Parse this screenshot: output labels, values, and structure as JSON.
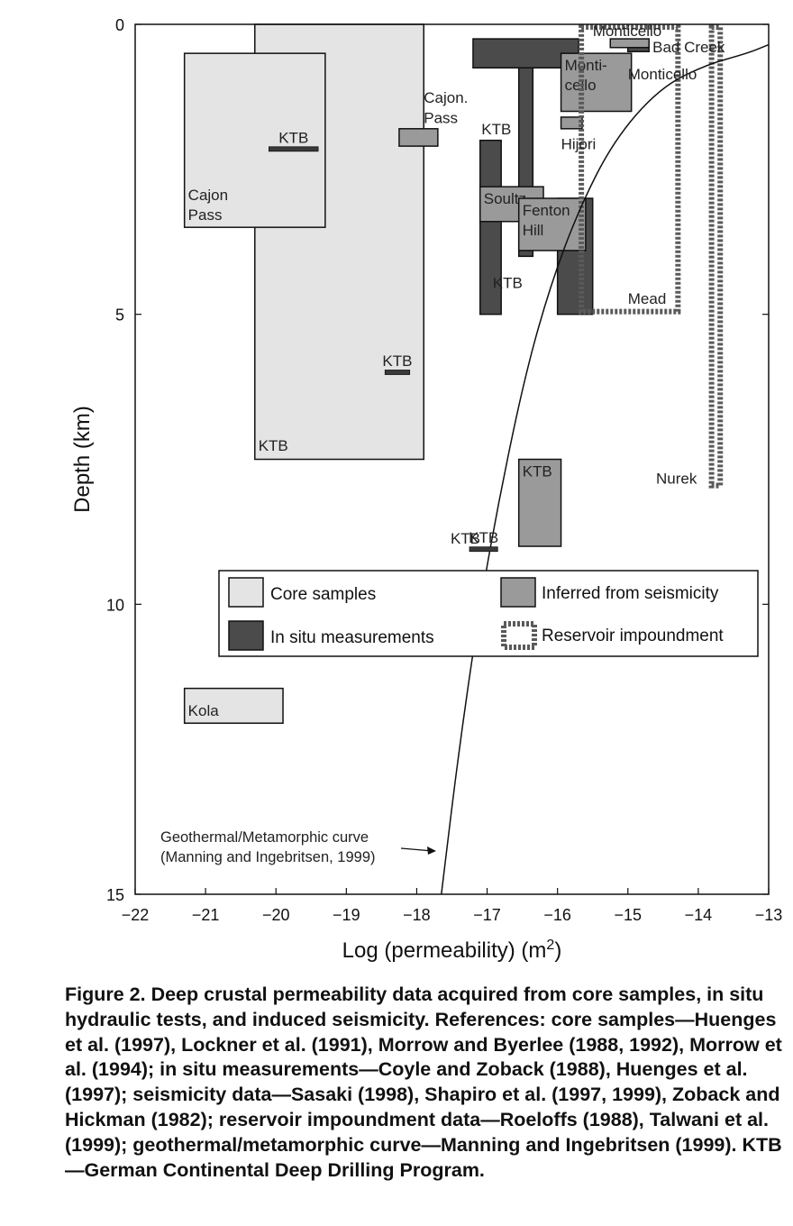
{
  "chart_data": {
    "type": "bar",
    "xlabel": "Log (permeability) (m",
    "xlabel_superscript": "2",
    "xlabel_suffix": ")",
    "ylabel": "Depth (km)",
    "xlim": [
      -22,
      -13
    ],
    "ylim": [
      0,
      15
    ],
    "y_inverted": true,
    "x_ticks": [
      "−22",
      "−21",
      "−20",
      "−19",
      "−18",
      "−17",
      "−16",
      "−15",
      "−14",
      "−13"
    ],
    "y_ticks": [
      "0",
      "5",
      "10",
      "15"
    ],
    "categories_legend": [
      {
        "key": "core",
        "label": "Core samples",
        "color": "#e4e4e4"
      },
      {
        "key": "inferred",
        "label": "Inferred from seismicity",
        "color": "#9a9a9a"
      },
      {
        "key": "insitu",
        "label": "In situ measurements",
        "color": "#4b4b4b"
      },
      {
        "key": "reservoir",
        "label": "Reservoir impoundment",
        "color": "#ffffff"
      }
    ],
    "boxes": [
      {
        "cat": "core",
        "label": "",
        "x": [
          -20.3,
          -17.9
        ],
        "y": [
          0,
          7.5
        ]
      },
      {
        "cat": "core",
        "label": "Cajon\nPass",
        "x": [
          -21.3,
          -19.3
        ],
        "y": [
          0.5,
          3.5
        ]
      },
      {
        "cat": "core",
        "label": "Kola",
        "x": [
          -21.3,
          -19.9
        ],
        "y": [
          11.45,
          12.05
        ]
      },
      {
        "cat": "insitu",
        "label": "",
        "x": [
          -17.2,
          -15.7
        ],
        "y": [
          0.25,
          0.75
        ]
      },
      {
        "cat": "insitu",
        "label": "",
        "x": [
          -16.55,
          -16.35
        ],
        "y": [
          0.75,
          4.0
        ]
      },
      {
        "cat": "insitu",
        "label": "",
        "x": [
          -17.1,
          -16.8
        ],
        "y": [
          2.0,
          5.0
        ]
      },
      {
        "cat": "insitu",
        "label": "",
        "x": [
          -16.0,
          -15.5
        ],
        "y": [
          3.0,
          5.0
        ]
      },
      {
        "cat": "insitu",
        "label": "",
        "x": [
          -15.25,
          -15.05
        ],
        "y": [
          0.7,
          1.05
        ]
      },
      {
        "cat": "insitu",
        "label": "",
        "x": [
          -15.0,
          -14.7
        ],
        "y": [
          0.35,
          0.47
        ]
      },
      {
        "cat": "inferred",
        "label": "",
        "x": [
          -18.25,
          -17.7
        ],
        "y": [
          1.8,
          2.1
        ]
      },
      {
        "cat": "inferred",
        "label": "Monti-\ncello",
        "x": [
          -15.95,
          -14.95
        ],
        "y": [
          0.5,
          1.5
        ]
      },
      {
        "cat": "inferred",
        "label": "",
        "x": [
          -15.25,
          -14.7
        ],
        "y": [
          0.25,
          0.4
        ]
      },
      {
        "cat": "inferred",
        "label": "",
        "x": [
          -15.95,
          -15.65
        ],
        "y": [
          1.6,
          1.8
        ]
      },
      {
        "cat": "inferred",
        "label": "Soultz",
        "x": [
          -17.1,
          -16.2
        ],
        "y": [
          2.8,
          3.4
        ]
      },
      {
        "cat": "inferred",
        "label": "Fenton\nHill",
        "x": [
          -16.55,
          -15.6
        ],
        "y": [
          3.0,
          3.9
        ]
      },
      {
        "cat": "inferred",
        "label": "KTB",
        "x": [
          -16.55,
          -15.95
        ],
        "y": [
          7.5,
          9.0
        ]
      },
      {
        "cat": "reservoir",
        "label": "",
        "x": [
          -15.7,
          -14.25
        ],
        "y": [
          0,
          5.0
        ]
      },
      {
        "cat": "reservoir",
        "label": "",
        "x": [
          -13.85,
          -13.65
        ],
        "y": [
          0,
          8.0
        ]
      }
    ],
    "lines": [
      {
        "label": "KTB",
        "x": [
          -20.1,
          -19.4
        ],
        "y": 2.15
      },
      {
        "label": "KTB",
        "x": [
          -18.45,
          -18.1
        ],
        "y": 6.0
      },
      {
        "label": "KTB",
        "x": [
          -17.25,
          -16.85
        ],
        "y": 9.05
      }
    ],
    "annotations": [
      {
        "text": "KTB",
        "x": -20.25,
        "y": 7.35
      },
      {
        "text": "Cajon.",
        "x": -17.9,
        "y": 1.35
      },
      {
        "text": "Pass",
        "x": -17.9,
        "y": 1.7
      },
      {
        "text": "KTB",
        "x": -17.08,
        "y": 1.9
      },
      {
        "text": "KTB",
        "x": -16.92,
        "y": 4.55
      },
      {
        "text": "Hijori",
        "x": -15.95,
        "y": 2.15
      },
      {
        "text": "Monticello",
        "x": -15.5,
        "y": 0.2
      },
      {
        "text": "Bad Creek",
        "x": -14.65,
        "y": 0.48
      },
      {
        "text": "Monticello",
        "x": -15.0,
        "y": 0.95
      },
      {
        "text": "Mead",
        "x": -15.0,
        "y": 4.82
      },
      {
        "text": "Nurek",
        "x": -14.6,
        "y": 7.92
      },
      {
        "text": "KTB",
        "x": -17.52,
        "y": 8.95
      }
    ],
    "curve": {
      "label_line1": "Geothermal/Metamorphic curve",
      "label_line2": "(Manning and Ingebritsen, 1999)",
      "points": [
        [
          -17.65,
          15
        ],
        [
          -17.4,
          12.5
        ],
        [
          -17.1,
          10
        ],
        [
          -16.8,
          8
        ],
        [
          -16.45,
          6
        ],
        [
          -16.1,
          4.5
        ],
        [
          -15.7,
          3.2
        ],
        [
          -15.2,
          2.0
        ],
        [
          -14.55,
          1.1
        ],
        [
          -13.9,
          0.7
        ],
        [
          -13.3,
          0.5
        ],
        [
          -13.0,
          0.35
        ]
      ]
    }
  },
  "caption": "Figure 2. Deep crustal permeability data acquired from core samples, in situ hydraulic tests, and induced seismicity. References: core samples—Huenges et al. (1997), Lockner et al. (1991), Morrow and Byerlee (1988, 1992), Morrow et al. (1994); in situ measurements—Coyle and Zoback (1988), Huenges et al. (1997); seismicity data—Sasaki (1998), Shapiro et al. (1997, 1999), Zoback and Hickman (1982); reservoir impoundment data—Roeloffs (1988), Talwani et al. (1999); geothermal/metamorphic curve—Manning and Ingebritsen (1999). KTB—German Continental Deep Drilling Program."
}
